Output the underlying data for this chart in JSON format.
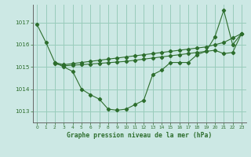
{
  "title": "Graphe pression niveau de la mer (hPa)",
  "bg_color": "#cce8e4",
  "grid_color": "#99ccbb",
  "line_color": "#2d6e2d",
  "xlim": [
    -0.5,
    23.5
  ],
  "ylim": [
    1012.5,
    1017.8
  ],
  "yticks": [
    1013,
    1014,
    1015,
    1016,
    1017
  ],
  "xticks": [
    0,
    1,
    2,
    3,
    4,
    5,
    6,
    7,
    8,
    9,
    10,
    11,
    12,
    13,
    14,
    15,
    16,
    17,
    18,
    19,
    20,
    21,
    22,
    23
  ],
  "series1_x": [
    0,
    1,
    2,
    3,
    4,
    5,
    6,
    7,
    8,
    9,
    10,
    11,
    12,
    13,
    14,
    15,
    16,
    17,
    18,
    19,
    20,
    21,
    22,
    23
  ],
  "series1_y": [
    1016.9,
    1016.1,
    1015.2,
    1015.0,
    1014.8,
    1014.0,
    1013.75,
    1013.55,
    1013.1,
    1013.05,
    1013.1,
    1013.3,
    1013.5,
    1014.65,
    1014.85,
    1015.2,
    1015.2,
    1015.2,
    1015.55,
    1015.7,
    1016.35,
    1017.55,
    1016.0,
    1016.5
  ],
  "series2_x": [
    2,
    3,
    4,
    5,
    6,
    7,
    8,
    9,
    10,
    11,
    12,
    13,
    14,
    15,
    16,
    17,
    18,
    19,
    20,
    21,
    22,
    23
  ],
  "series2_y": [
    1015.2,
    1015.1,
    1015.15,
    1015.2,
    1015.25,
    1015.3,
    1015.35,
    1015.4,
    1015.45,
    1015.5,
    1015.55,
    1015.6,
    1015.65,
    1015.7,
    1015.75,
    1015.8,
    1015.85,
    1015.9,
    1016.0,
    1016.1,
    1016.3,
    1016.5
  ],
  "series3_x": [
    2,
    3,
    4,
    5,
    6,
    7,
    8,
    9,
    10,
    11,
    12,
    13,
    14,
    15,
    16,
    17,
    18,
    19,
    20,
    21,
    22,
    23
  ],
  "series3_y": [
    1015.15,
    1015.05,
    1015.08,
    1015.1,
    1015.13,
    1015.16,
    1015.19,
    1015.22,
    1015.25,
    1015.3,
    1015.35,
    1015.4,
    1015.45,
    1015.5,
    1015.55,
    1015.6,
    1015.65,
    1015.7,
    1015.75,
    1015.6,
    1015.65,
    1016.5
  ]
}
